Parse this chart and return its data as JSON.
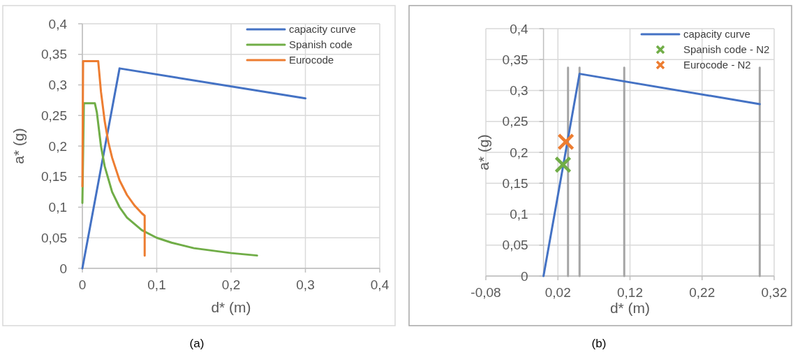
{
  "chart_data": [
    {
      "type": "line",
      "xlabel": "d* (m)",
      "ylabel": "a* (g)",
      "annotations": [
        "(a)"
      ],
      "xlim": [
        0,
        0.4
      ],
      "ylim": [
        0,
        0.4
      ],
      "xticks": [
        0,
        {
          "value": 0.1,
          "label": "0,1"
        },
        {
          "value": 0.2,
          "label": "0,2"
        },
        {
          "value": 0.3,
          "label": "0,3"
        },
        {
          "value": 0.4,
          "label": "0,4"
        }
      ],
      "yticks": [
        0,
        {
          "value": 0.05,
          "label": "0,05"
        },
        {
          "value": 0.1,
          "label": "0,1"
        },
        {
          "value": 0.15,
          "label": "0,15"
        },
        {
          "value": 0.2,
          "label": "0,2"
        },
        {
          "value": 0.25,
          "label": "0,25"
        },
        {
          "value": 0.3,
          "label": "0,3"
        },
        {
          "value": 0.35,
          "label": "0,35"
        },
        {
          "value": 0.4,
          "label": "0,4"
        }
      ],
      "grid": true,
      "legend": "top right",
      "line_style": "solid",
      "marker": "none",
      "series": [
        {
          "name": "capacity curve",
          "color": "#4472c4",
          "x": [
            0,
            0.05,
            0.3
          ],
          "values": [
            0,
            0.327,
            0.278
          ]
        },
        {
          "name": "Spanish code",
          "color": "#70ad47",
          "x": [
            0,
            0.002,
            0.0168,
            0.0195,
            0.025,
            0.03,
            0.04,
            0.05,
            0.06,
            0.08,
            0.1,
            0.12,
            0.15,
            0.2,
            0.235
          ],
          "values": [
            0.107,
            0.27,
            0.27,
            0.255,
            0.2,
            0.167,
            0.125,
            0.1,
            0.083,
            0.0625,
            0.05,
            0.042,
            0.033,
            0.025,
            0.021
          ]
        },
        {
          "name": "Eurocode",
          "color": "#ed7d31",
          "x": [
            0,
            0.001,
            0.0213,
            0.025,
            0.03,
            0.035,
            0.04,
            0.05,
            0.06,
            0.07,
            0.08,
            0.0838,
            0.0838
          ],
          "values": [
            0.134,
            0.339,
            0.339,
            0.289,
            0.241,
            0.206,
            0.181,
            0.144,
            0.12,
            0.103,
            0.09,
            0.086,
            0.021
          ]
        }
      ]
    },
    {
      "type": "line",
      "xlabel": "d* (m)",
      "ylabel": "a* (g)",
      "annotations": [
        "(b)"
      ],
      "xlim": [
        -0.08,
        0.32
      ],
      "ylim": [
        0,
        0.4
      ],
      "xticks": [
        {
          "value": -0.08,
          "label": "-0,08"
        },
        {
          "value": 0.02,
          "label": "0,02"
        },
        {
          "value": 0.12,
          "label": "0,12"
        },
        {
          "value": 0.22,
          "label": "0,22"
        },
        {
          "value": 0.32,
          "label": "0,32"
        }
      ],
      "yticks": [
        0,
        {
          "value": 0.05,
          "label": "0,05"
        },
        {
          "value": 0.1,
          "label": "0,1"
        },
        {
          "value": 0.15,
          "label": "0,15"
        },
        {
          "value": 0.2,
          "label": "0,2"
        },
        {
          "value": 0.25,
          "label": "0,25"
        },
        {
          "value": 0.3,
          "label": "0,3"
        },
        {
          "value": 0.35,
          "label": "0,35"
        },
        {
          "value": 0.4,
          "label": "0,4"
        }
      ],
      "grid": true,
      "legend": "top right",
      "line_style": "solid",
      "series": [
        {
          "color": "#a5a5a5",
          "x": [
            0.034,
            0.034
          ],
          "values": [
            0,
            0.337
          ]
        },
        {
          "color": "#a5a5a5",
          "x": [
            0.05,
            0.05
          ],
          "values": [
            0,
            0.337
          ]
        },
        {
          "color": "#a5a5a5",
          "x": [
            0.112,
            0.112
          ],
          "values": [
            0,
            0.337
          ]
        },
        {
          "color": "#a5a5a5",
          "x": [
            0.3,
            0.3
          ],
          "values": [
            0,
            0.337
          ]
        },
        {
          "name": "capacity curve",
          "color": "#4472c4",
          "x": [
            0,
            0.05,
            0.3
          ],
          "values": [
            0,
            0.327,
            0.278
          ]
        },
        {
          "name": "Spanish code - N2",
          "type": "scatter",
          "marker": "cross",
          "color": "#70ad47",
          "x": [
            0.027
          ],
          "values": [
            0.18
          ]
        },
        {
          "name": "Eurocode - N2",
          "type": "scatter",
          "marker": "cross",
          "color": "#ed7d31",
          "x": [
            0.031
          ],
          "values": [
            0.217
          ]
        }
      ]
    }
  ]
}
